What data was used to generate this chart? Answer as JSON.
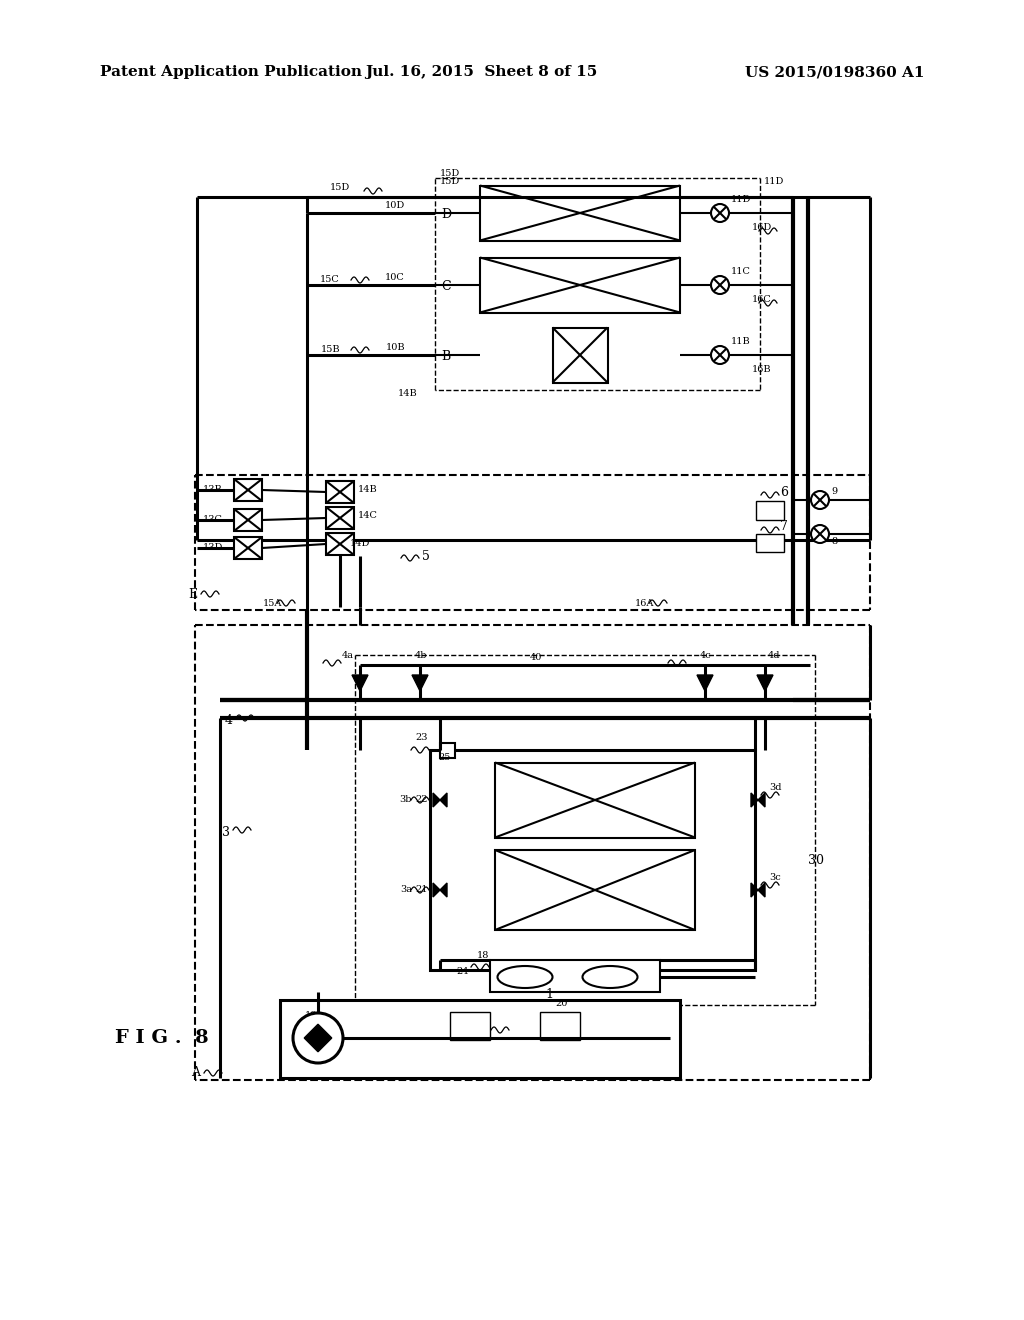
{
  "bg": "#ffffff",
  "hdr_left": "Patent Application Publication",
  "hdr_mid": "Jul. 16, 2015  Sheet 8 of 15",
  "hdr_right": "US 2015/0198360 A1",
  "fig_label": "F I G .  8"
}
